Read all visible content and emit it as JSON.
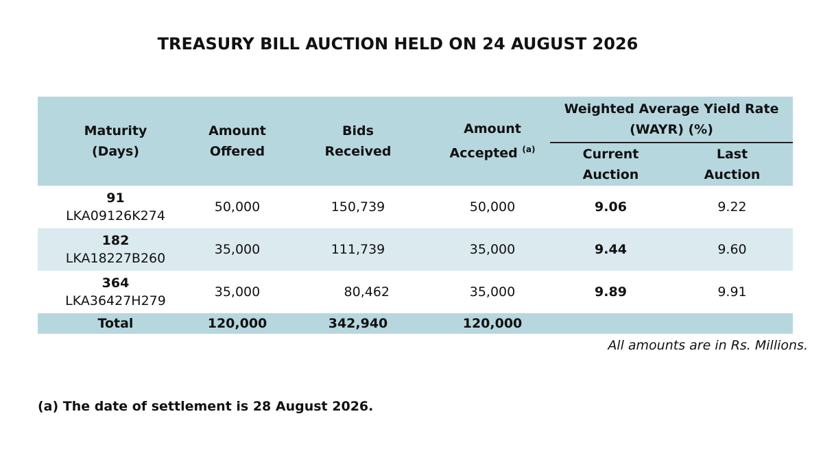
{
  "title": "TREASURY BILL AUCTION HELD ON 24 AUGUST 2026",
  "table": {
    "headers": {
      "maturity": [
        "Maturity",
        "(Days)"
      ],
      "amount_offered": [
        "Amount",
        "Offered"
      ],
      "bids_received": [
        "Bids",
        "Received"
      ],
      "amount_accepted": [
        "Amount",
        "Accepted"
      ],
      "amount_accepted_note": "(a)",
      "wayr": [
        "Weighted Average Yield Rate",
        "(WAYR) (%)"
      ],
      "current_auction": [
        "Current",
        "Auction"
      ],
      "last_auction": [
        "Last",
        "Auction"
      ]
    },
    "rows": [
      {
        "days": "91",
        "isin": "LKA09126K274",
        "offered": "50,000",
        "bids": "150,739",
        "accepted": "50,000",
        "current": "9.06",
        "last": "9.22"
      },
      {
        "days": "182",
        "isin": "LKA18227B260",
        "offered": "35,000",
        "bids": "111,739",
        "accepted": "35,000",
        "current": "9.44",
        "last": "9.60"
      },
      {
        "days": "364",
        "isin": "LKA36427H279",
        "offered": "35,000",
        "bids": "80,462",
        "accepted": "35,000",
        "current": "9.89",
        "last": "9.91"
      }
    ],
    "total": {
      "label": "Total",
      "offered": "120,000",
      "bids": "342,940",
      "accepted": "120,000"
    }
  },
  "units_note": "All amounts are in Rs. Millions.",
  "footnote": "(a) The date of settlement is 28 August 2026.",
  "colors": {
    "header_bg": "#b7d7df",
    "stripe_bg": "#dbeaee"
  }
}
